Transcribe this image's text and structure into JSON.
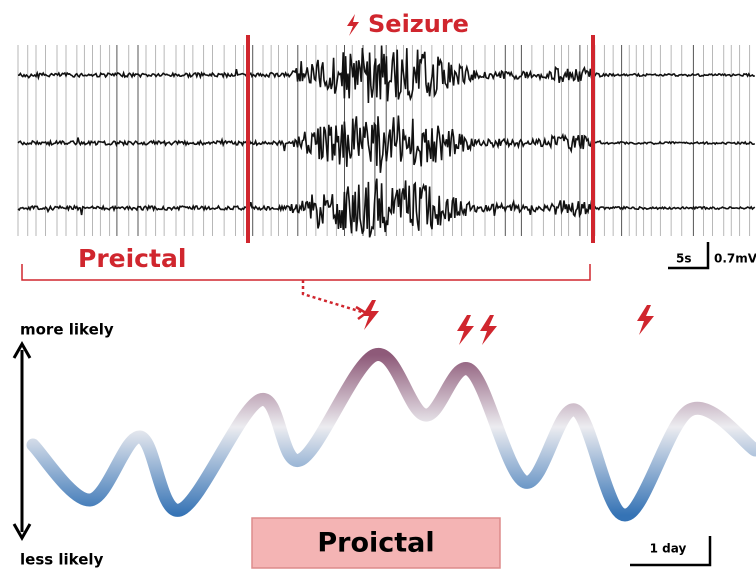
{
  "seizure_label": "Seizure",
  "preictal_label": "Preictal",
  "scale_time": "5s",
  "scale_voltage": "0.7mV",
  "axis_top": "more likely",
  "axis_bottom": "less likely",
  "proictal_label": "Proictal",
  "scale_day": "1 day"
}
